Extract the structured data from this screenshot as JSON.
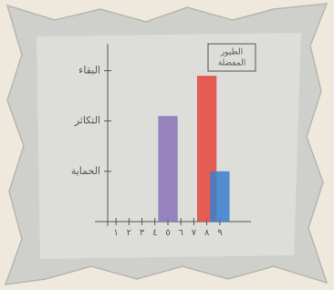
{
  "chart_data": {
    "type": "bar",
    "title_lines": [
      "الطيور",
      "المفضلة"
    ],
    "categories": [
      "١",
      "٢",
      "٣",
      "٤",
      "٥",
      "٦",
      "٧",
      "٨",
      "٩"
    ],
    "values": [
      null,
      null,
      null,
      null,
      2.1,
      null,
      null,
      2.9,
      1.0
    ],
    "colors": [
      null,
      null,
      null,
      null,
      "#8a72b6",
      null,
      null,
      "#e5453b",
      "#3b7fcf"
    ],
    "ylim": [
      0,
      3.5
    ],
    "yticks": [
      {
        "value": 1,
        "label": "الحماية"
      },
      {
        "value": 2,
        "label": "التكاثر"
      },
      {
        "value": 3,
        "label": "البقاء"
      }
    ]
  }
}
